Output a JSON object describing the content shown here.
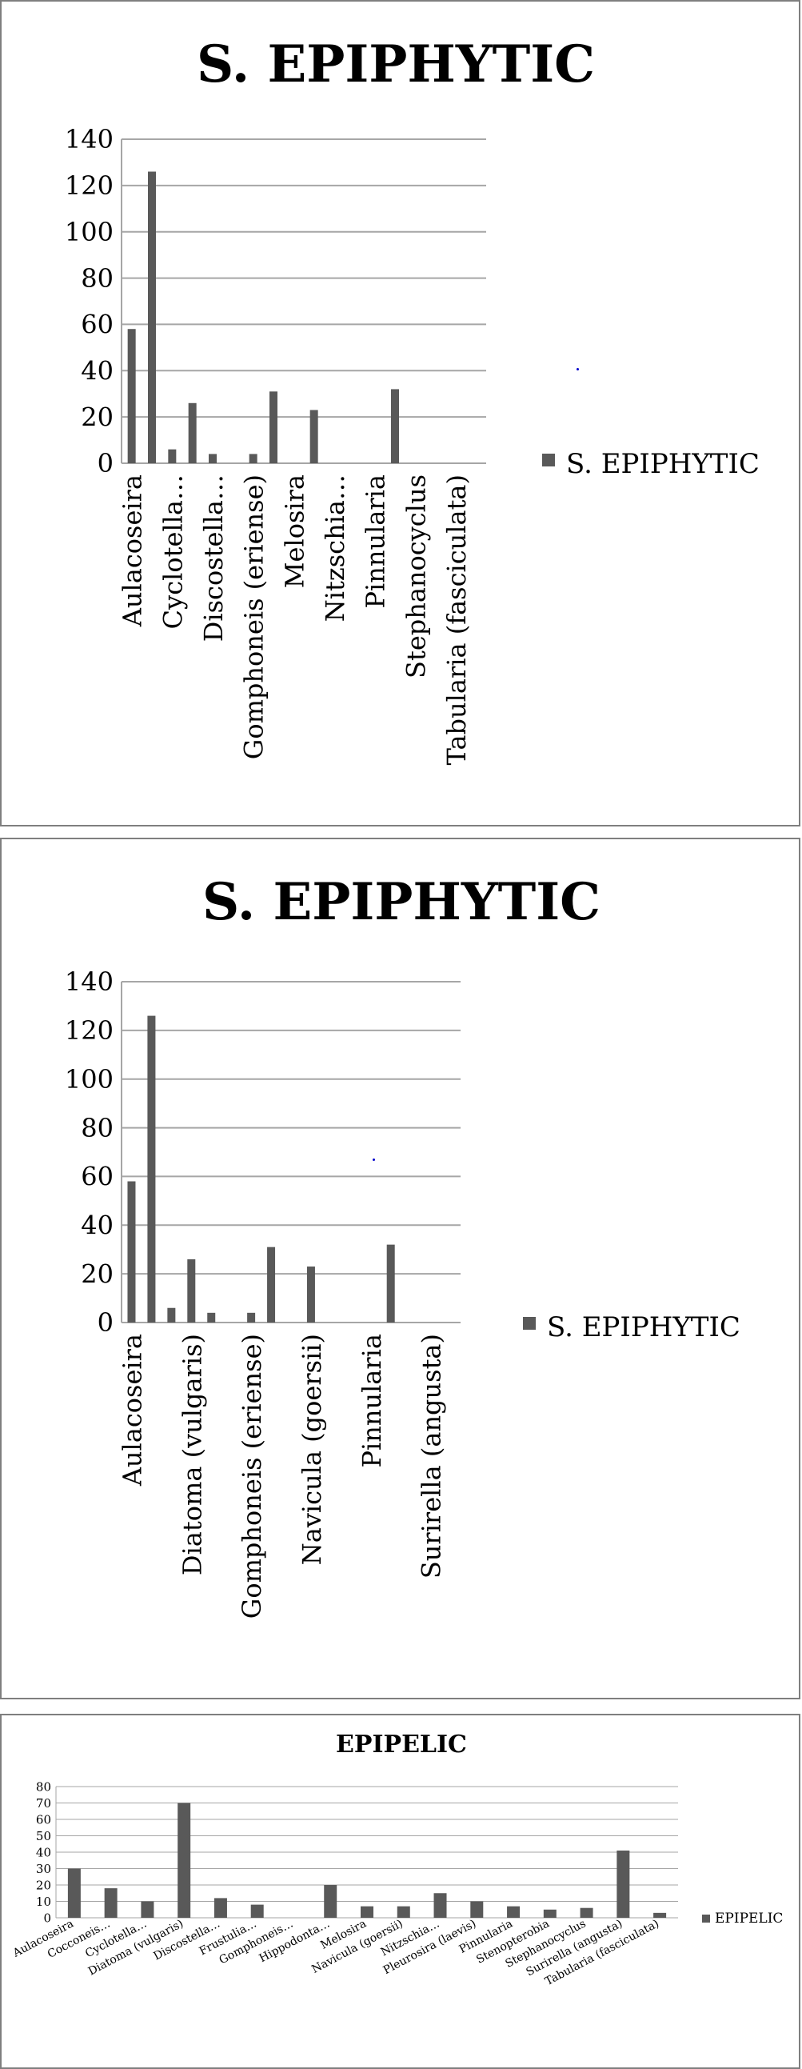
{
  "chart_data": [
    {
      "type": "bar",
      "title": "S. EPIPHYTIC",
      "ylim": [
        0,
        140
      ],
      "yticks": [
        0,
        20,
        40,
        60,
        80,
        100,
        120,
        140
      ],
      "grid": true,
      "legend": "right",
      "tick_labels": [
        "Aulacoseira",
        "Cyclotella…",
        "Discostella…",
        "Gomphoneis (eriense)",
        "Melosira",
        "Nitzschia…",
        "Pinnularia",
        "Stephanocyclus",
        "Tabularia (fasciculata)"
      ],
      "series": [
        {
          "name": "S. EPIPHYTIC",
          "values": [
            58,
            126,
            6,
            26,
            4,
            0,
            4,
            31,
            0,
            23,
            0,
            0,
            0,
            32,
            0,
            0,
            0,
            0
          ]
        }
      ]
    },
    {
      "type": "bar",
      "title": "S. EPIPHYTIC",
      "ylim": [
        0,
        140
      ],
      "yticks": [
        0,
        20,
        40,
        60,
        80,
        100,
        120,
        140
      ],
      "grid": true,
      "legend": "right",
      "tick_labels": [
        "Aulacoseira",
        "Diatoma (vulgaris)",
        "Gomphoneis (eriense)",
        "Navicula (goersii)",
        "Pinnularia",
        "Surirella (angusta)"
      ],
      "series": [
        {
          "name": "S. EPIPHYTIC",
          "values": [
            58,
            126,
            6,
            26,
            4,
            0,
            4,
            31,
            0,
            23,
            0,
            0,
            0,
            32,
            0,
            0,
            0
          ]
        }
      ]
    },
    {
      "type": "bar",
      "title": "EPIPELIC",
      "ylim": [
        0,
        80
      ],
      "yticks": [
        0,
        10,
        20,
        30,
        40,
        50,
        60,
        70,
        80
      ],
      "grid": true,
      "legend": "right",
      "categories": [
        "Aulacoseira",
        "Cocconeis…",
        "Cyclotella…",
        "Diatoma (vulgaris)",
        "Discostella…",
        "Frustulia…",
        "Gomphoneis…",
        "Hippodonta…",
        "Melosira",
        "Navicula (goersii)",
        "Nitzschia…",
        "Pleurosira (laevis)",
        "Pinnularia",
        "Stenopterobia",
        "Stephanocyclus",
        "Surirella (angusta)",
        "Tabularia (fasciculata)"
      ],
      "series": [
        {
          "name": "EPIPELIC",
          "values": [
            30,
            18,
            10,
            70,
            12,
            8,
            0,
            20,
            7,
            7,
            15,
            10,
            7,
            5,
            6,
            41,
            3
          ]
        }
      ]
    }
  ]
}
